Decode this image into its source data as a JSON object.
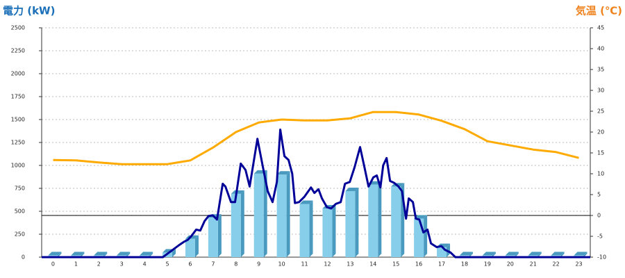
{
  "chart_data": {
    "type": "bar",
    "y_label": "電力 (kW)",
    "y2_label": "気温 (℃)",
    "y_label_color": "#1a6fb8",
    "y2_label_color": "#f0821e",
    "categories": [
      "0",
      "1",
      "2",
      "3",
      "4",
      "5",
      "6",
      "7",
      "8",
      "9",
      "10",
      "11",
      "12",
      "13",
      "14",
      "15",
      "16",
      "17",
      "18",
      "19",
      "20",
      "21",
      "22",
      "23"
    ],
    "xlim": [
      -0.5,
      23.5
    ],
    "ylim": [
      0,
      2500
    ],
    "yticks": [
      0,
      250,
      500,
      750,
      1000,
      1250,
      1500,
      1750,
      2000,
      2250,
      2500
    ],
    "y2lim": [
      -10,
      45
    ],
    "y2ticks": [
      -10,
      -5,
      0,
      5,
      10,
      15,
      20,
      25,
      30,
      35,
      40,
      45
    ],
    "grid": true,
    "series": [
      {
        "type": "bar",
        "color": "#87ceeb",
        "side_color": "#4a9ac0",
        "values": [
          20,
          20,
          20,
          20,
          20,
          50,
          200,
          430,
          690,
          910,
          900,
          580,
          530,
          720,
          790,
          770,
          420,
          110,
          20,
          20,
          20,
          20,
          20,
          20
        ]
      },
      {
        "type": "line",
        "color": "#000099",
        "x": [
          -0.5,
          4.8,
          5.02,
          5.29,
          5.53,
          5.71,
          5.9,
          6.05,
          6.26,
          6.44,
          6.63,
          6.81,
          6.99,
          7.17,
          7.42,
          7.54,
          7.78,
          7.96,
          8.21,
          8.42,
          8.6,
          8.94,
          9.15,
          9.39,
          9.6,
          9.79,
          9.94,
          10.12,
          10.3,
          10.46,
          10.58,
          10.76,
          11.0,
          11.28,
          11.43,
          11.61,
          11.76,
          11.98,
          12.16,
          12.37,
          12.58,
          12.77,
          12.98,
          13.19,
          13.43,
          13.62,
          13.8,
          14.01,
          14.16,
          14.32,
          14.44,
          14.59,
          14.74,
          14.92,
          15.11,
          15.26,
          15.44,
          15.56,
          15.74,
          15.87,
          16.02,
          16.2,
          16.38,
          16.53,
          16.78,
          16.99,
          17.14,
          17.39,
          17.6,
          23.5
        ],
        "values": [
          0,
          0,
          40,
          90,
          135,
          165,
          190,
          230,
          300,
          290,
          395,
          450,
          455,
          410,
          800,
          770,
          600,
          600,
          1020,
          950,
          770,
          1290,
          1020,
          720,
          600,
          820,
          1390,
          1100,
          1060,
          910,
          590,
          600,
          660,
          760,
          700,
          740,
          640,
          545,
          530,
          580,
          600,
          800,
          820,
          980,
          1200,
          980,
          770,
          870,
          890,
          760,
          1000,
          1080,
          830,
          810,
          770,
          720,
          420,
          640,
          600,
          420,
          410,
          270,
          300,
          150,
          110,
          120,
          80,
          50,
          0,
          0
        ]
      },
      {
        "type": "line",
        "axis": "y2",
        "color": "#ffaa00",
        "values": [
          13.3,
          13.2,
          12.7,
          12.3,
          12.3,
          12.3,
          13.2,
          16.3,
          20,
          22.3,
          23,
          22.8,
          22.8,
          23.3,
          24.8,
          24.8,
          24.2,
          22.7,
          20.7,
          17.8,
          16.8,
          15.8,
          15.2,
          13.8
        ]
      }
    ]
  }
}
